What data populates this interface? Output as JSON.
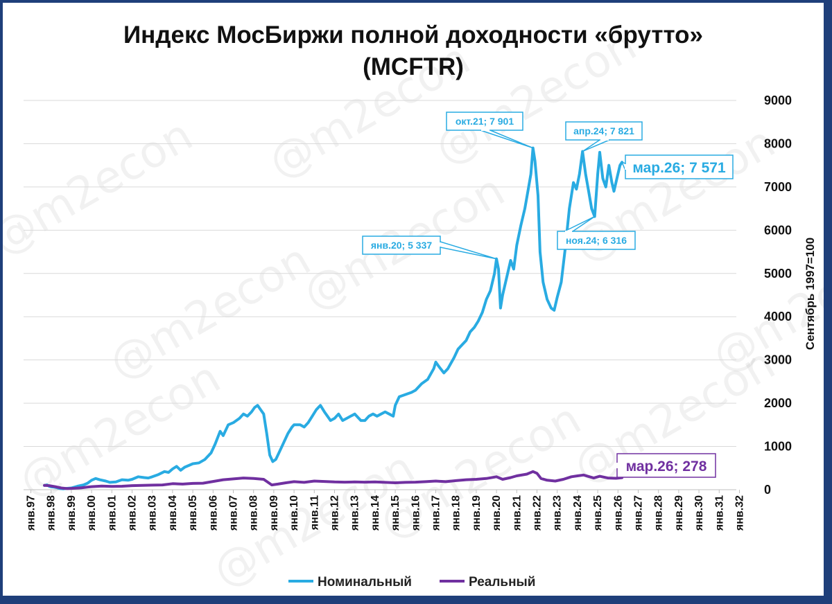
{
  "watermark": "@m2econ",
  "colors": {
    "nominal": "#29abe2",
    "real": "#7030a0",
    "grid": "#d9d9d9",
    "frame": "#1f3f7a"
  },
  "chart_data": {
    "type": "line",
    "title": "Индекс МосБиржи полной доходности «брутто»",
    "subtitle": "(MCFTR)",
    "ylabel": "Сентябрь 1997=100",
    "ylim": [
      0,
      9000
    ],
    "yticks": [
      "0",
      "1000",
      "2000",
      "3000",
      "4000",
      "5000",
      "6000",
      "7000",
      "8000",
      "9000"
    ],
    "y_axis_side": "right",
    "xlim": [
      1997,
      2032.9
    ],
    "x_tick_labels": [
      "янв.97",
      "янв.98",
      "янв.99",
      "янв.00",
      "янв.01",
      "янв.02",
      "янв.03",
      "янв.04",
      "янв.05",
      "янв.06",
      "янв.07",
      "янв.08",
      "янв.09",
      "янв.10",
      "янв.11",
      "янв.12",
      "янв.13",
      "янв.14",
      "янв.15",
      "янв.16",
      "янв.17",
      "янв.18",
      "янв.19",
      "янв.20",
      "янв.21",
      "янв.22",
      "янв.23",
      "янв.24",
      "янв.25",
      "янв.26",
      "янв.27",
      "янв.28",
      "янв.29",
      "янв.30",
      "янв.31",
      "янв.32"
    ],
    "grid": true,
    "legend_position": "bottom",
    "series": [
      {
        "name": "Номинальный",
        "color": "#29abe2",
        "points": [
          [
            1997.67,
            100
          ],
          [
            1997.8,
            110
          ],
          [
            1997.9,
            80
          ],
          [
            1998.0,
            65
          ],
          [
            1998.15,
            60
          ],
          [
            1998.3,
            45
          ],
          [
            1998.45,
            25
          ],
          [
            1998.6,
            20
          ],
          [
            1998.75,
            30
          ],
          [
            1999.0,
            40
          ],
          [
            1999.3,
            80
          ],
          [
            1999.6,
            110
          ],
          [
            1999.8,
            150
          ],
          [
            2000.0,
            220
          ],
          [
            2000.2,
            260
          ],
          [
            2000.4,
            230
          ],
          [
            2000.7,
            200
          ],
          [
            2000.9,
            170
          ],
          [
            2001.2,
            180
          ],
          [
            2001.5,
            230
          ],
          [
            2001.8,
            220
          ],
          [
            2002.0,
            240
          ],
          [
            2002.3,
            300
          ],
          [
            2002.6,
            280
          ],
          [
            2002.8,
            270
          ],
          [
            2003.0,
            300
          ],
          [
            2003.3,
            350
          ],
          [
            2003.6,
            420
          ],
          [
            2003.8,
            400
          ],
          [
            2004.0,
            480
          ],
          [
            2004.2,
            540
          ],
          [
            2004.4,
            450
          ],
          [
            2004.6,
            520
          ],
          [
            2004.8,
            560
          ],
          [
            2005.0,
            600
          ],
          [
            2005.3,
            620
          ],
          [
            2005.6,
            700
          ],
          [
            2005.9,
            850
          ],
          [
            2006.1,
            1050
          ],
          [
            2006.35,
            1350
          ],
          [
            2006.5,
            1250
          ],
          [
            2006.75,
            1500
          ],
          [
            2007.0,
            1550
          ],
          [
            2007.3,
            1650
          ],
          [
            2007.5,
            1750
          ],
          [
            2007.7,
            1700
          ],
          [
            2007.9,
            1800
          ],
          [
            2008.05,
            1900
          ],
          [
            2008.2,
            1950
          ],
          [
            2008.35,
            1850
          ],
          [
            2008.5,
            1750
          ],
          [
            2008.65,
            1300
          ],
          [
            2008.8,
            800
          ],
          [
            2008.95,
            650
          ],
          [
            2009.1,
            700
          ],
          [
            2009.3,
            900
          ],
          [
            2009.5,
            1100
          ],
          [
            2009.7,
            1300
          ],
          [
            2009.9,
            1450
          ],
          [
            2010.0,
            1500
          ],
          [
            2010.3,
            1500
          ],
          [
            2010.5,
            1450
          ],
          [
            2010.7,
            1550
          ],
          [
            2010.9,
            1700
          ],
          [
            2011.1,
            1850
          ],
          [
            2011.3,
            1950
          ],
          [
            2011.5,
            1800
          ],
          [
            2011.65,
            1700
          ],
          [
            2011.8,
            1600
          ],
          [
            2012.0,
            1650
          ],
          [
            2012.2,
            1750
          ],
          [
            2012.4,
            1600
          ],
          [
            2012.6,
            1650
          ],
          [
            2012.8,
            1700
          ],
          [
            2013.0,
            1750
          ],
          [
            2013.3,
            1600
          ],
          [
            2013.5,
            1600
          ],
          [
            2013.7,
            1700
          ],
          [
            2013.9,
            1750
          ],
          [
            2014.1,
            1700
          ],
          [
            2014.3,
            1750
          ],
          [
            2014.5,
            1800
          ],
          [
            2014.7,
            1750
          ],
          [
            2014.9,
            1700
          ],
          [
            2015.0,
            1950
          ],
          [
            2015.2,
            2150
          ],
          [
            2015.5,
            2200
          ],
          [
            2015.8,
            2250
          ],
          [
            2016.0,
            2300
          ],
          [
            2016.3,
            2450
          ],
          [
            2016.6,
            2550
          ],
          [
            2016.9,
            2800
          ],
          [
            2017.0,
            2950
          ],
          [
            2017.15,
            2850
          ],
          [
            2017.4,
            2700
          ],
          [
            2017.6,
            2800
          ],
          [
            2017.9,
            3050
          ],
          [
            2018.1,
            3250
          ],
          [
            2018.3,
            3350
          ],
          [
            2018.5,
            3450
          ],
          [
            2018.7,
            3650
          ],
          [
            2018.9,
            3750
          ],
          [
            2019.1,
            3900
          ],
          [
            2019.3,
            4100
          ],
          [
            2019.5,
            4400
          ],
          [
            2019.7,
            4600
          ],
          [
            2019.9,
            5000
          ],
          [
            2020.0,
            5337
          ],
          [
            2020.1,
            5100
          ],
          [
            2020.2,
            4200
          ],
          [
            2020.3,
            4500
          ],
          [
            2020.5,
            4900
          ],
          [
            2020.7,
            5300
          ],
          [
            2020.85,
            5100
          ],
          [
            2021.0,
            5650
          ],
          [
            2021.2,
            6100
          ],
          [
            2021.4,
            6500
          ],
          [
            2021.55,
            6900
          ],
          [
            2021.7,
            7300
          ],
          [
            2021.8,
            7901
          ],
          [
            2021.9,
            7600
          ],
          [
            2022.05,
            6800
          ],
          [
            2022.15,
            5500
          ],
          [
            2022.3,
            4800
          ],
          [
            2022.5,
            4400
          ],
          [
            2022.7,
            4200
          ],
          [
            2022.85,
            4150
          ],
          [
            2023.0,
            4450
          ],
          [
            2023.2,
            4800
          ],
          [
            2023.4,
            5600
          ],
          [
            2023.6,
            6500
          ],
          [
            2023.8,
            7100
          ],
          [
            2023.95,
            6950
          ],
          [
            2024.1,
            7300
          ],
          [
            2024.25,
            7821
          ],
          [
            2024.4,
            7300
          ],
          [
            2024.55,
            6900
          ],
          [
            2024.7,
            6500
          ],
          [
            2024.85,
            6316
          ],
          [
            2025.0,
            7300
          ],
          [
            2025.1,
            7800
          ],
          [
            2025.25,
            7200
          ],
          [
            2025.4,
            7000
          ],
          [
            2025.55,
            7500
          ],
          [
            2025.7,
            7100
          ],
          [
            2025.8,
            6900
          ],
          [
            2025.95,
            7200
          ],
          [
            2026.1,
            7500
          ],
          [
            2026.2,
            7571
          ]
        ]
      },
      {
        "name": "Реальный",
        "color": "#7030a0",
        "points": [
          [
            1997.67,
            100
          ],
          [
            1997.9,
            95
          ],
          [
            1998.2,
            70
          ],
          [
            1998.5,
            40
          ],
          [
            1998.8,
            25
          ],
          [
            1999.0,
            30
          ],
          [
            1999.5,
            45
          ],
          [
            2000.0,
            70
          ],
          [
            2000.5,
            85
          ],
          [
            2001.0,
            75
          ],
          [
            2001.5,
            80
          ],
          [
            2002.0,
            95
          ],
          [
            2002.5,
            100
          ],
          [
            2003.0,
            105
          ],
          [
            2003.5,
            110
          ],
          [
            2004.0,
            140
          ],
          [
            2004.5,
            130
          ],
          [
            2005.0,
            145
          ],
          [
            2005.5,
            150
          ],
          [
            2006.0,
            190
          ],
          [
            2006.5,
            230
          ],
          [
            2007.0,
            250
          ],
          [
            2007.5,
            270
          ],
          [
            2008.0,
            260
          ],
          [
            2008.5,
            240
          ],
          [
            2008.9,
            110
          ],
          [
            2009.2,
            130
          ],
          [
            2009.6,
            160
          ],
          [
            2010.0,
            185
          ],
          [
            2010.5,
            170
          ],
          [
            2011.0,
            200
          ],
          [
            2011.5,
            190
          ],
          [
            2012.0,
            180
          ],
          [
            2012.5,
            175
          ],
          [
            2013.0,
            180
          ],
          [
            2013.5,
            175
          ],
          [
            2014.0,
            180
          ],
          [
            2014.5,
            170
          ],
          [
            2015.0,
            160
          ],
          [
            2015.5,
            170
          ],
          [
            2016.0,
            175
          ],
          [
            2016.5,
            185
          ],
          [
            2017.0,
            200
          ],
          [
            2017.5,
            185
          ],
          [
            2018.0,
            210
          ],
          [
            2018.5,
            230
          ],
          [
            2019.0,
            240
          ],
          [
            2019.5,
            260
          ],
          [
            2020.0,
            300
          ],
          [
            2020.3,
            240
          ],
          [
            2020.7,
            280
          ],
          [
            2021.0,
            320
          ],
          [
            2021.5,
            360
          ],
          [
            2021.8,
            420
          ],
          [
            2022.0,
            380
          ],
          [
            2022.2,
            260
          ],
          [
            2022.5,
            220
          ],
          [
            2022.9,
            200
          ],
          [
            2023.3,
            240
          ],
          [
            2023.7,
            300
          ],
          [
            2024.0,
            320
          ],
          [
            2024.3,
            340
          ],
          [
            2024.8,
            270
          ],
          [
            2025.1,
            310
          ],
          [
            2025.5,
            270
          ],
          [
            2025.9,
            265
          ],
          [
            2026.2,
            278
          ]
        ]
      }
    ],
    "annotations": [
      {
        "text": "окт.21; 7 901",
        "series": "Номинальный",
        "x": 2021.8,
        "y": 7901
      },
      {
        "text": "апр.24; 7 821",
        "series": "Номинальный",
        "x": 2024.25,
        "y": 7821
      },
      {
        "text": "янв.20; 5 337",
        "series": "Номинальный",
        "x": 2020.0,
        "y": 5337
      },
      {
        "text": "ноя.24; 6 316",
        "series": "Номинальный",
        "x": 2024.85,
        "y": 6316
      },
      {
        "text": "мар.26; 7 571",
        "series": "Номинальный",
        "x": 2026.2,
        "y": 7571
      },
      {
        "text": "мар.26; 278",
        "series": "Реальный",
        "x": 2026.2,
        "y": 278
      }
    ]
  }
}
